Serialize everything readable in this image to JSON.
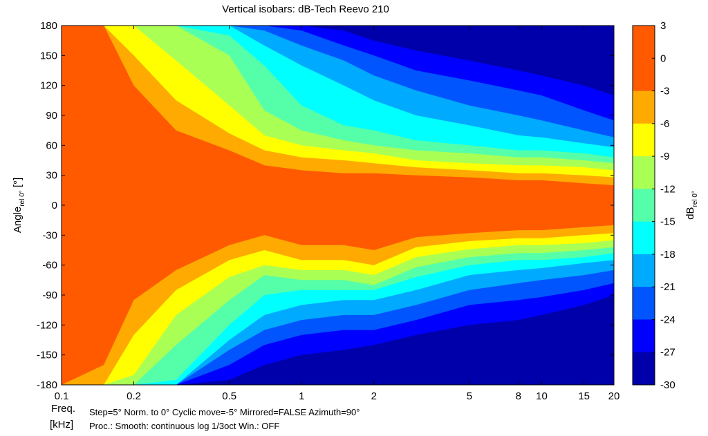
{
  "chart_data": {
    "type": "heatmap",
    "title": "Vertical isobars: dB-Tech  Reevo 210",
    "xlabel": "Freq.",
    "xunit": "[kHz]",
    "ylabel_main": "Angle",
    "ylabel_sub": "rel 0°",
    "ylabel_unit": " [°]",
    "colorbar_label_main": "dB",
    "colorbar_label_sub": "rel 0°",
    "x_scale": "log",
    "xlim_khz": [
      0.1,
      20
    ],
    "x_ticks": [
      {
        "value": 0.1,
        "label": "0.1"
      },
      {
        "value": 0.2,
        "label": "0.2"
      },
      {
        "value": 0.5,
        "label": "0.5"
      },
      {
        "value": 1,
        "label": "1"
      },
      {
        "value": 2,
        "label": "2"
      },
      {
        "value": 5,
        "label": "5"
      },
      {
        "value": 8,
        "label": "8"
      },
      {
        "value": 10,
        "label": "10"
      },
      {
        "value": 15,
        "label": "15"
      },
      {
        "value": 20,
        "label": "20"
      }
    ],
    "ylim": [
      -180,
      180
    ],
    "y_ticks": [
      180,
      150,
      120,
      90,
      60,
      30,
      0,
      -30,
      -60,
      -90,
      -120,
      -150,
      -180
    ],
    "colorbar_ticks": [
      3,
      0,
      -3,
      -6,
      -9,
      -12,
      -15,
      -18,
      -21,
      -24,
      -27,
      -30
    ],
    "levels": [
      {
        "min": 0,
        "max": 3,
        "color": "#ff5a00"
      },
      {
        "min": -3,
        "max": 0,
        "color": "#ff5a00"
      },
      {
        "min": -6,
        "max": -3,
        "color": "#ffaa00"
      },
      {
        "min": -9,
        "max": -6,
        "color": "#ffff00"
      },
      {
        "min": -12,
        "max": -9,
        "color": "#aaff55"
      },
      {
        "min": -15,
        "max": -12,
        "color": "#55ffaa"
      },
      {
        "min": -18,
        "max": -15,
        "color": "#00ffff"
      },
      {
        "min": -21,
        "max": -18,
        "color": "#00aaff"
      },
      {
        "min": -24,
        "max": -21,
        "color": "#0055ff"
      },
      {
        "min": -27,
        "max": -24,
        "color": "#0000ff"
      },
      {
        "min": -30,
        "max": -27,
        "color": "#0000aa"
      }
    ],
    "isobar_contours_deg": {
      "freq_khz": [
        0.1,
        0.15,
        0.2,
        0.3,
        0.5,
        0.7,
        1,
        1.5,
        2,
        3,
        5,
        8,
        10,
        15,
        20
      ],
      "upper": {
        "-3": [
          180,
          180,
          120,
          75,
          55,
          40,
          35,
          32,
          32,
          30,
          28,
          25,
          25,
          22,
          20
        ],
        "-6": [
          180,
          180,
          150,
          105,
          72,
          55,
          48,
          45,
          42,
          38,
          35,
          32,
          32,
          30,
          28
        ],
        "-9": [
          180,
          180,
          180,
          145,
          100,
          70,
          60,
          55,
          52,
          45,
          42,
          40,
          40,
          38,
          35
        ],
        "-12": [
          180,
          180,
          180,
          180,
          150,
          95,
          75,
          65,
          60,
          55,
          52,
          48,
          48,
          45,
          42
        ],
        "-15": [
          180,
          180,
          180,
          180,
          170,
          140,
          100,
          80,
          75,
          65,
          60,
          55,
          55,
          52,
          48
        ],
        "-18": [
          180,
          180,
          180,
          180,
          180,
          160,
          140,
          120,
          105,
          90,
          80,
          70,
          68,
          62,
          58
        ],
        "-21": [
          180,
          180,
          180,
          180,
          180,
          175,
          160,
          145,
          130,
          115,
          100,
          90,
          85,
          75,
          68
        ],
        "-24": [
          180,
          180,
          180,
          180,
          180,
          180,
          175,
          160,
          150,
          135,
          125,
          115,
          110,
          95,
          85
        ],
        "-27": [
          180,
          180,
          180,
          180,
          180,
          180,
          180,
          175,
          165,
          155,
          145,
          135,
          130,
          120,
          110
        ]
      },
      "lower": {
        "-3": [
          -180,
          -160,
          -95,
          -65,
          -40,
          -30,
          -40,
          -40,
          -45,
          -32,
          -28,
          -25,
          -25,
          -22,
          -20
        ],
        "-6": [
          -180,
          -180,
          -130,
          -85,
          -55,
          -45,
          -55,
          -55,
          -60,
          -42,
          -36,
          -33,
          -33,
          -30,
          -28
        ],
        "-9": [
          -180,
          -180,
          -170,
          -110,
          -72,
          -60,
          -65,
          -65,
          -70,
          -52,
          -44,
          -40,
          -40,
          -38,
          -35
        ],
        "-12": [
          -180,
          -180,
          -180,
          -140,
          -95,
          -70,
          -75,
          -75,
          -80,
          -62,
          -52,
          -48,
          -48,
          -45,
          -42
        ],
        "-15": [
          -180,
          -180,
          -180,
          -175,
          -120,
          -90,
          -85,
          -85,
          -85,
          -72,
          -60,
          -55,
          -55,
          -52,
          -48
        ],
        "-18": [
          -180,
          -180,
          -180,
          -180,
          -135,
          -110,
          -100,
          -95,
          -95,
          -85,
          -70,
          -65,
          -63,
          -58,
          -55
        ],
        "-21": [
          -180,
          -180,
          -180,
          -180,
          -145,
          -125,
          -115,
          -110,
          -110,
          -100,
          -85,
          -78,
          -75,
          -70,
          -65
        ],
        "-24": [
          -180,
          -180,
          -180,
          -180,
          -160,
          -140,
          -130,
          -125,
          -125,
          -115,
          -100,
          -95,
          -92,
          -85,
          -78
        ],
        "-27": [
          -180,
          -180,
          -180,
          -180,
          -175,
          -160,
          -150,
          -145,
          -140,
          -130,
          -120,
          -115,
          -110,
          -100,
          -90
        ]
      }
    }
  },
  "footer": {
    "line1": "Step=5°    Norm. to 0°    Cyclic move=-5°    Mirrored=FALSE    Azimuth=90°",
    "line2": "Proc.: Smooth: continuous log 1/3oct    Win.: OFF"
  }
}
